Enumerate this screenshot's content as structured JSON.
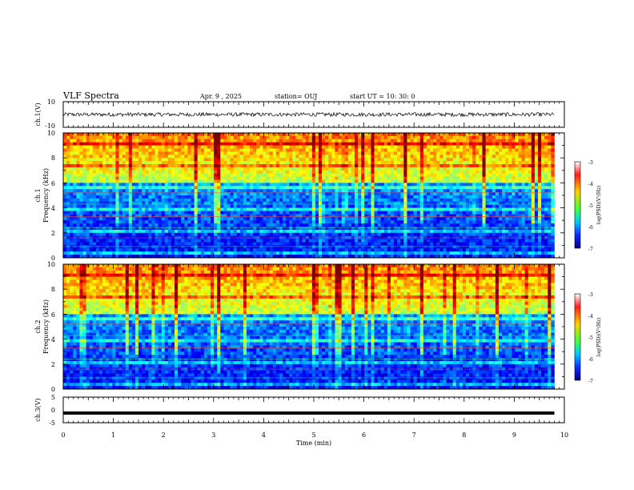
{
  "header": {
    "title": "VLF Spectra",
    "date": "Apr. 9 , 2025",
    "station": "station= OUJ",
    "start": "start UT = 10: 30: 0"
  },
  "colorbar": {
    "label": "log(PSD)(V²/Hz)",
    "ticks": [
      "-3",
      "-4",
      "-5",
      "-6",
      "-7"
    ],
    "colors": [
      "#ffffff",
      "#ff2020",
      "#ffd000",
      "#40ff40",
      "#00c8ff",
      "#1028ff",
      "#000080"
    ]
  },
  "chart_data": [
    {
      "type": "line",
      "name": "ch1-waveform",
      "ylabel": "ch.1(V)",
      "ylim": [
        -10,
        10
      ],
      "ytick_labels": [
        "10",
        "-10"
      ],
      "x": [
        0,
        1,
        2,
        3,
        4,
        5,
        5.5,
        6,
        7,
        8,
        9,
        9.8
      ],
      "y": [
        0,
        0,
        0,
        0,
        0,
        0,
        0,
        0,
        0,
        0,
        0,
        0
      ],
      "noise_amplitude": 1.5,
      "xlim": [
        0,
        10
      ],
      "xlabel": "",
      "color": "#000000"
    },
    {
      "type": "heatmap",
      "name": "ch1-spectrogram",
      "ylabel": "ch.1\nFrequency (kHz)",
      "ylabel_lines": [
        "ch.1",
        "Frequency (kHz)"
      ],
      "ylim": [
        0,
        10
      ],
      "ytick_labels": [
        "0",
        "2",
        "4",
        "6",
        "8",
        "10"
      ],
      "xlim": [
        0,
        10
      ],
      "data_xlim": [
        0,
        9.8
      ],
      "zlim": [
        -7,
        -3
      ],
      "colorscale": "jet"
    },
    {
      "type": "heatmap",
      "name": "ch2-spectrogram",
      "ylabel": "ch.2\nFrequency (kHz)",
      "ylabel_lines": [
        "ch.2",
        "Frequency (kHz)"
      ],
      "ylim": [
        0,
        10
      ],
      "ytick_labels": [
        "0",
        "2",
        "4",
        "6",
        "8",
        "10"
      ],
      "xlim": [
        0,
        10
      ],
      "data_xlim": [
        0,
        9.8
      ],
      "zlim": [
        -7,
        -3
      ],
      "colorscale": "jet"
    },
    {
      "type": "line",
      "name": "ch3-waveform",
      "ylabel": "ch.3(V)",
      "ylim": [
        -5,
        5
      ],
      "ytick_labels": [
        "5",
        "0",
        "-5"
      ],
      "x": [
        0,
        9.8
      ],
      "y": [
        -1.2,
        -1.2
      ],
      "xlim": [
        0,
        10
      ],
      "xlabel": "Time (min)",
      "xtick_labels": [
        "0",
        "1",
        "2",
        "3",
        "4",
        "5",
        "6",
        "7",
        "8",
        "9",
        "10"
      ],
      "color": "#000000"
    }
  ]
}
